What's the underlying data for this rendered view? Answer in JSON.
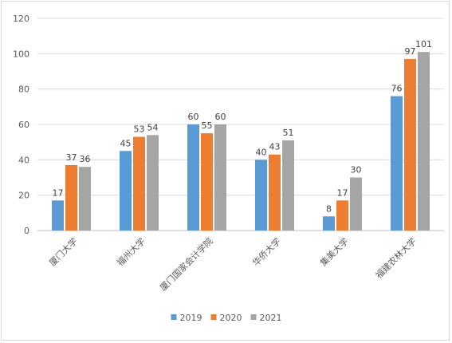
{
  "chart_data": {
    "type": "bar",
    "title": "",
    "xlabel": "",
    "ylabel": "",
    "ylim": [
      0,
      120
    ],
    "yticks": [
      0,
      20,
      40,
      60,
      80,
      100,
      120
    ],
    "grid": true,
    "legend_position": "bottom",
    "categories": [
      "厦门大学",
      "福州大学",
      "厦门国家会计学院",
      "华侨大学",
      "集美大学",
      "福建农林大学"
    ],
    "series": [
      {
        "name": "2019",
        "color": "#5B9BD5",
        "values": [
          17,
          45,
          60,
          40,
          8,
          76
        ]
      },
      {
        "name": "2020",
        "color": "#ED7D31",
        "values": [
          37,
          53,
          55,
          43,
          17,
          97
        ]
      },
      {
        "name": "2021",
        "color": "#A5A5A5",
        "values": [
          36,
          54,
          60,
          51,
          30,
          101
        ]
      }
    ]
  }
}
